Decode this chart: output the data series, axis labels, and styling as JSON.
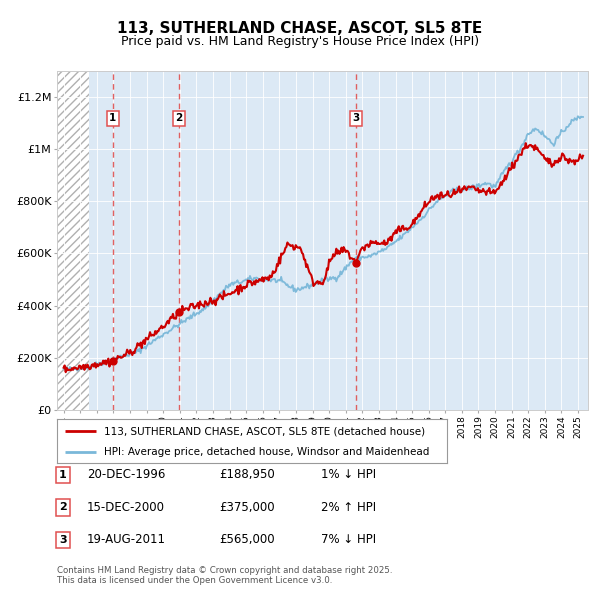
{
  "title": "113, SUTHERLAND CHASE, ASCOT, SL5 8TE",
  "subtitle": "Price paid vs. HM Land Registry's House Price Index (HPI)",
  "ylabel_ticks": [
    "£0",
    "£200K",
    "£400K",
    "£600K",
    "£800K",
    "£1M",
    "£1.2M"
  ],
  "ytick_values": [
    0,
    200000,
    400000,
    600000,
    800000,
    1000000,
    1200000
  ],
  "ylim": [
    0,
    1300000
  ],
  "xlim_start": 1993.6,
  "xlim_end": 2025.6,
  "hatch_end": 1995.5,
  "sales": [
    {
      "label": "1",
      "date": "20-DEC-1996",
      "year": 1996.96,
      "price": 188950,
      "pct": "1%",
      "dir": "↓"
    },
    {
      "label": "2",
      "date": "15-DEC-2000",
      "year": 2000.96,
      "price": 375000,
      "pct": "2%",
      "dir": "↑"
    },
    {
      "label": "3",
      "date": "19-AUG-2011",
      "year": 2011.63,
      "price": 565000,
      "pct": "7%",
      "dir": "↓"
    }
  ],
  "legend_entries": [
    "113, SUTHERLAND CHASE, ASCOT, SL5 8TE (detached house)",
    "HPI: Average price, detached house, Windsor and Maidenhead"
  ],
  "footnote": "Contains HM Land Registry data © Crown copyright and database right 2025.\nThis data is licensed under the Open Government Licence v3.0.",
  "table_rows": [
    [
      "1",
      "20-DEC-1996",
      "£188,950",
      "1% ↓ HPI"
    ],
    [
      "2",
      "15-DEC-2000",
      "£375,000",
      "2% ↑ HPI"
    ],
    [
      "3",
      "19-AUG-2011",
      "£565,000",
      "7% ↓ HPI"
    ]
  ],
  "hpi_color": "#7ab8d9",
  "price_color": "#cc0000",
  "plot_bg": "#dce9f5",
  "grid_color": "#ffffff",
  "sale_line_color": "#e05050",
  "hpi_anchors_x": [
    1994.0,
    1995.5,
    1997.0,
    1998.5,
    2000.0,
    2001.5,
    2002.5,
    2004.0,
    2005.5,
    2007.0,
    2008.0,
    2009.0,
    2009.5,
    2010.5,
    2011.5,
    2012.5,
    2013.5,
    2014.5,
    2015.5,
    2016.5,
    2017.5,
    2018.5,
    2019.5,
    2020.0,
    2020.5,
    2021.5,
    2022.0,
    2022.5,
    2023.0,
    2023.5,
    2024.0,
    2024.5,
    2025.3
  ],
  "hpi_anchors_y": [
    155000,
    165000,
    195000,
    225000,
    290000,
    350000,
    390000,
    480000,
    505000,
    495000,
    460000,
    480000,
    495000,
    510000,
    580000,
    590000,
    620000,
    670000,
    730000,
    800000,
    840000,
    850000,
    870000,
    855000,
    910000,
    1000000,
    1060000,
    1080000,
    1050000,
    1020000,
    1060000,
    1100000,
    1130000
  ],
  "prop_anchors_x": [
    1994.0,
    1995.5,
    1996.96,
    1998.0,
    2000.0,
    2000.96,
    2002.0,
    2003.5,
    2005.0,
    2006.5,
    2007.5,
    2008.3,
    2009.0,
    2009.6,
    2010.2,
    2010.8,
    2011.0,
    2011.63,
    2012.0,
    2012.5,
    2013.5,
    2014.0,
    2015.0,
    2016.0,
    2016.5,
    2017.0,
    2018.0,
    2018.5,
    2019.0,
    2020.0,
    2021.0,
    2021.5,
    2022.0,
    2022.5,
    2023.0,
    2023.5,
    2024.0,
    2024.5,
    2025.3
  ],
  "prop_anchors_y": [
    155000,
    170000,
    188950,
    220000,
    320000,
    375000,
    400000,
    430000,
    480000,
    510000,
    635000,
    620000,
    490000,
    490000,
    590000,
    610000,
    610000,
    565000,
    620000,
    640000,
    640000,
    680000,
    710000,
    800000,
    820000,
    820000,
    840000,
    850000,
    840000,
    830000,
    930000,
    980000,
    1020000,
    1000000,
    960000,
    940000,
    980000,
    950000,
    970000
  ]
}
